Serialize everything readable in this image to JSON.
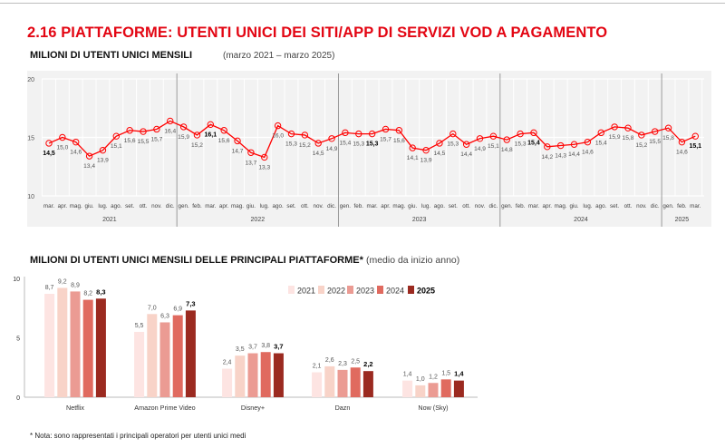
{
  "header": {
    "title": "2.16 PIATTAFORME: UTENTI UNICI DEI SITI/APP DI SERVIZI VOD A PAGAMENTO",
    "subtitle": "MILIONI DI UTENTI UNICI MENSILI",
    "period": "(marzo 2021 – marzo 2025)",
    "subtitle2": "MILIONI DI UTENTI UNICI MENSILI DELLE PRINCIPALI PIATTAFORME*",
    "subtitle2_note": "(medio da inizio anno)",
    "footnote": "* Nota: sono rappresentati i principali operatori per utenti unici medi"
  },
  "chart_data": [
    {
      "type": "line",
      "title": "MILIONI DI UTENTI UNICI MENSILI",
      "ylim": [
        10,
        20
      ],
      "yticks": [
        "10",
        "15",
        "20"
      ],
      "grid": true,
      "color": "#ff0000",
      "years": [
        {
          "label": "2021",
          "months": [
            "mar.",
            "apr.",
            "mag.",
            "giu.",
            "lug.",
            "ago.",
            "set.",
            "ott.",
            "nov.",
            "dic."
          ],
          "values": [
            14.5,
            15.0,
            14.6,
            13.4,
            13.9,
            15.1,
            15.6,
            15.5,
            15.7,
            16.4
          ],
          "labels": [
            "14,5",
            "15,0",
            "14,6",
            "13,4",
            "13,9",
            "15,1",
            "15,6",
            "15,5",
            "15,7",
            "16,4"
          ]
        },
        {
          "label": "2022",
          "months": [
            "gen.",
            "feb.",
            "mar.",
            "apr.",
            "mag.",
            "giu.",
            "lug.",
            "ago.",
            "set.",
            "ott.",
            "nov.",
            "dic."
          ],
          "values": [
            15.9,
            15.2,
            16.1,
            15.6,
            14.7,
            13.7,
            13.3,
            16.0,
            15.3,
            15.2,
            14.5,
            14.9
          ],
          "labels": [
            "15,9",
            "15,2",
            "16,1",
            "15,6",
            "14,7",
            "13,7",
            "13,3",
            "16,0",
            "15,3",
            "15,2",
            "14,5",
            "14,9"
          ]
        },
        {
          "label": "2023",
          "months": [
            "gen.",
            "feb.",
            "mar.",
            "apr.",
            "mag.",
            "giu.",
            "lug.",
            "ago.",
            "set.",
            "ott.",
            "nov.",
            "dic."
          ],
          "values": [
            15.4,
            15.3,
            15.3,
            15.7,
            15.6,
            14.1,
            13.9,
            14.5,
            15.3,
            14.4,
            14.9,
            15.1
          ],
          "labels": [
            "15,4",
            "15,3",
            "15,3",
            "15,7",
            "15,6",
            "14,1",
            "13,9",
            "14,5",
            "15,3",
            "14,4",
            "14,9",
            "15,1"
          ]
        },
        {
          "label": "2024",
          "months": [
            "gen.",
            "feb.",
            "mar.",
            "apr.",
            "mag.",
            "giu.",
            "lug.",
            "ago.",
            "set.",
            "ott.",
            "nov.",
            "dic."
          ],
          "values": [
            14.8,
            15.3,
            15.4,
            14.2,
            14.3,
            14.4,
            14.6,
            15.4,
            15.9,
            15.8,
            15.2,
            15.5
          ],
          "labels": [
            "14,8",
            "15,3",
            "15,4",
            "14,2",
            "14,3",
            "14,4",
            "14,6",
            "15,4",
            "15,9",
            "15,8",
            "15,2",
            "15,5"
          ]
        },
        {
          "label": "2025",
          "months": [
            "gen.",
            "feb.",
            "mar."
          ],
          "values": [
            15.8,
            14.6,
            15.1
          ],
          "labels": [
            "15,8",
            "14,6",
            "15,1"
          ]
        }
      ],
      "highlighted_month": "mar."
    },
    {
      "type": "bar",
      "title": "MILIONI DI UTENTI UNICI MENSILI DELLE PRINCIPALI PIATTAFORME*",
      "ylim": [
        0,
        10
      ],
      "yticks": [
        "0",
        "5",
        "10"
      ],
      "legend": "top-right",
      "categories": [
        "Netflix",
        "Amazon Prime Video",
        "Disney+",
        "Dazn",
        "Now (Sky)"
      ],
      "series": [
        {
          "name": "2021",
          "color": "#fde4e2",
          "values": [
            8.7,
            5.5,
            2.4,
            2.1,
            1.4
          ],
          "labels": [
            "8,7",
            "5,5",
            "2,4",
            "2,1",
            "1,4"
          ]
        },
        {
          "name": "2022",
          "color": "#f8d3c8",
          "values": [
            9.2,
            7.0,
            3.5,
            2.6,
            1.0
          ],
          "labels": [
            "9,2",
            "7,0",
            "3,5",
            "2,6",
            "1,0"
          ]
        },
        {
          "name": "2023",
          "color": "#eb9b93",
          "values": [
            8.9,
            6.3,
            3.7,
            2.3,
            1.2
          ],
          "labels": [
            "8,9",
            "6,3",
            "3,7",
            "2,3",
            "1,2"
          ]
        },
        {
          "name": "2024",
          "color": "#e06a5f",
          "values": [
            8.2,
            6.9,
            3.8,
            2.5,
            1.5
          ],
          "labels": [
            "8,2",
            "6,9",
            "3,8",
            "2,5",
            "1,5"
          ]
        },
        {
          "name": "2025",
          "color": "#9b2a20",
          "values": [
            8.3,
            7.3,
            3.7,
            2.2,
            1.4
          ],
          "labels": [
            "8,3",
            "7,3",
            "3,7",
            "2,2",
            "1,4"
          ]
        }
      ]
    }
  ]
}
